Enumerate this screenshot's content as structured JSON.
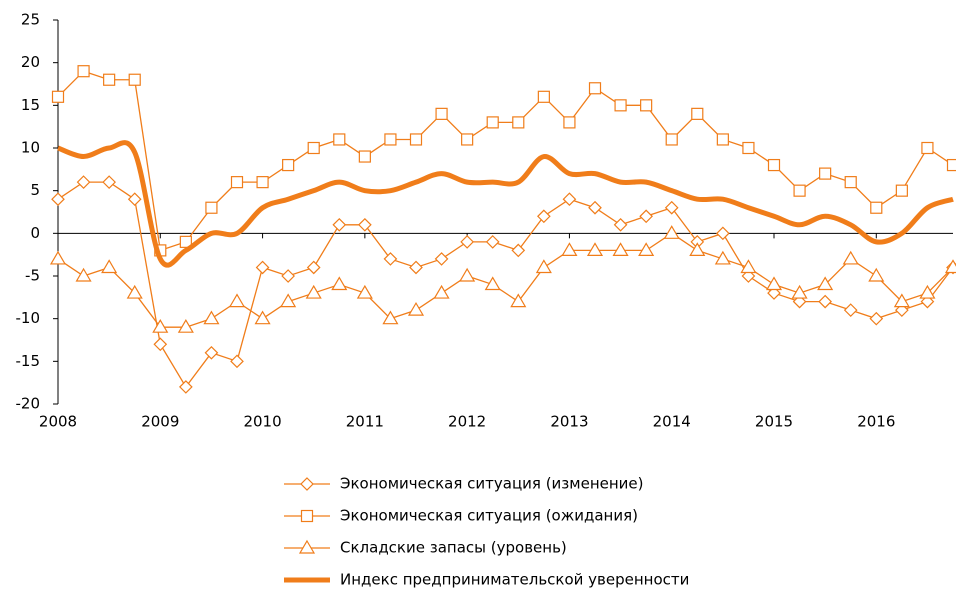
{
  "chart_data": {
    "type": "line",
    "x": [
      2008,
      2008.25,
      2008.5,
      2008.75,
      2009,
      2009.25,
      2009.5,
      2009.75,
      2010,
      2010.25,
      2010.5,
      2010.75,
      2011,
      2011.25,
      2011.5,
      2011.75,
      2012,
      2012.25,
      2012.5,
      2012.75,
      2013,
      2013.25,
      2013.5,
      2013.75,
      2014,
      2014.25,
      2014.5,
      2014.75,
      2015,
      2015.25,
      2015.5,
      2015.75,
      2016,
      2016.25,
      2016.5,
      2016.75
    ],
    "series": [
      {
        "name": "Экономическая ситуация (изменение)",
        "color": "#f07d1a",
        "marker": "diamond",
        "values": [
          4,
          6,
          6,
          4,
          -13,
          -18,
          -14,
          -15,
          -4,
          -5,
          -4,
          1,
          1,
          -3,
          -4,
          -3,
          -1,
          -1,
          -2,
          2,
          4,
          3,
          1,
          2,
          3,
          -1,
          0,
          -5,
          -7,
          -8,
          -8,
          -9,
          -10,
          -9,
          -8,
          -4
        ]
      },
      {
        "name": "Экономическая ситуация (ожидания)",
        "color": "#f07d1a",
        "marker": "square",
        "values": [
          16,
          19,
          18,
          18,
          -2,
          -1,
          3,
          6,
          6,
          8,
          10,
          11,
          9,
          11,
          11,
          14,
          11,
          13,
          13,
          16,
          13,
          17,
          15,
          15,
          11,
          14,
          11,
          10,
          8,
          5,
          7,
          6,
          3,
          5,
          10,
          8
        ]
      },
      {
        "name": "Складские запасы (уровень)",
        "color": "#f07d1a",
        "marker": "triangle",
        "values": [
          -3,
          -5,
          -4,
          -7,
          -11,
          -11,
          -10,
          -8,
          -10,
          -8,
          -7,
          -6,
          -7,
          -10,
          -9,
          -7,
          -5,
          -6,
          -8,
          -4,
          -2,
          -2,
          -2,
          -2,
          0,
          -2,
          -3,
          -4,
          -6,
          -7,
          -6,
          -3,
          -5,
          -8,
          -7,
          -4
        ]
      },
      {
        "name": "Индекс предпринимательской уверенности",
        "color": "#f07d1a",
        "marker": "none",
        "values": [
          10,
          9,
          10,
          9.5,
          -3,
          -2,
          0,
          0,
          3,
          4,
          5,
          6,
          5,
          5,
          6,
          7,
          6,
          6,
          6,
          9,
          7,
          7,
          6,
          6,
          5,
          4,
          4,
          3,
          2,
          1,
          2,
          1,
          -1,
          0,
          3,
          4
        ]
      }
    ],
    "xlim": [
      2008,
      2016.75
    ],
    "xticks": [
      2008,
      2009,
      2010,
      2011,
      2012,
      2013,
      2014,
      2015,
      2016
    ],
    "ylim": [
      -20,
      25
    ],
    "yticks": [
      -20,
      -15,
      -10,
      -5,
      0,
      5,
      10,
      15,
      20,
      25
    ],
    "legend": "bottom"
  }
}
